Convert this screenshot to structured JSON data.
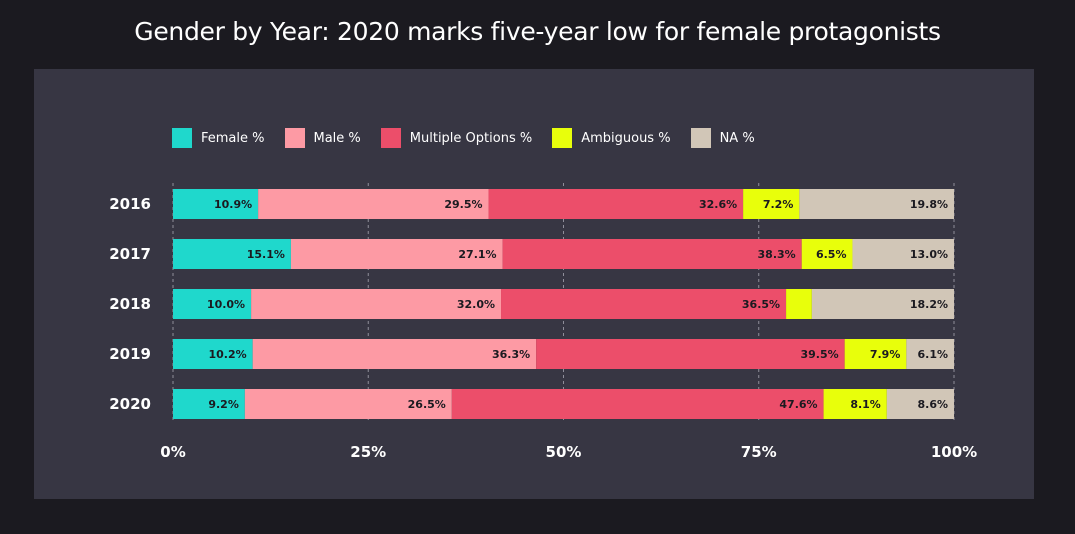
{
  "chart_data": {
    "type": "bar",
    "orientation": "horizontal",
    "stacked": true,
    "title": "Gender by Year: 2020 marks five-year low for female protagonists",
    "categories": [
      "2016",
      "2017",
      "2018",
      "2019",
      "2020"
    ],
    "series": [
      {
        "name": "Female %",
        "color": "#1fd8cc",
        "values": [
          10.9,
          15.1,
          10.0,
          10.2,
          9.2
        ],
        "labels": [
          "10.9%",
          "15.1%",
          "10.0%",
          "10.2%",
          "9.2%"
        ]
      },
      {
        "name": "Male %",
        "color": "#fd9aa4",
        "values": [
          29.5,
          27.1,
          32.0,
          36.3,
          26.5
        ],
        "labels": [
          "29.5%",
          "27.1%",
          "32.0%",
          "36.3%",
          "26.5%"
        ]
      },
      {
        "name": "Multiple Options %",
        "color": "#ec4e6a",
        "values": [
          32.6,
          38.3,
          36.5,
          39.5,
          47.6
        ],
        "labels": [
          "32.6%",
          "38.3%",
          "36.5%",
          "39.5%",
          "47.6%"
        ]
      },
      {
        "name": "Ambiguous %",
        "color": "#e8ff0b",
        "values": [
          7.2,
          6.5,
          3.3,
          7.9,
          8.1
        ],
        "labels": [
          "7.2%",
          "6.5%",
          "",
          "7.9%",
          "8.1%"
        ]
      },
      {
        "name": "NA %",
        "color": "#d1c6b7",
        "values": [
          19.8,
          13.0,
          18.2,
          6.1,
          8.6
        ],
        "labels": [
          "19.8%",
          "13.0%",
          "18.2%",
          "6.1%",
          "8.6%"
        ]
      }
    ],
    "xlim": [
      0,
      100
    ],
    "x_ticks": [
      0,
      25,
      50,
      75,
      100
    ],
    "x_tick_labels": [
      "0%",
      "25%",
      "50%",
      "75%",
      "100%"
    ],
    "grid": true,
    "legend_position": "top-left"
  }
}
